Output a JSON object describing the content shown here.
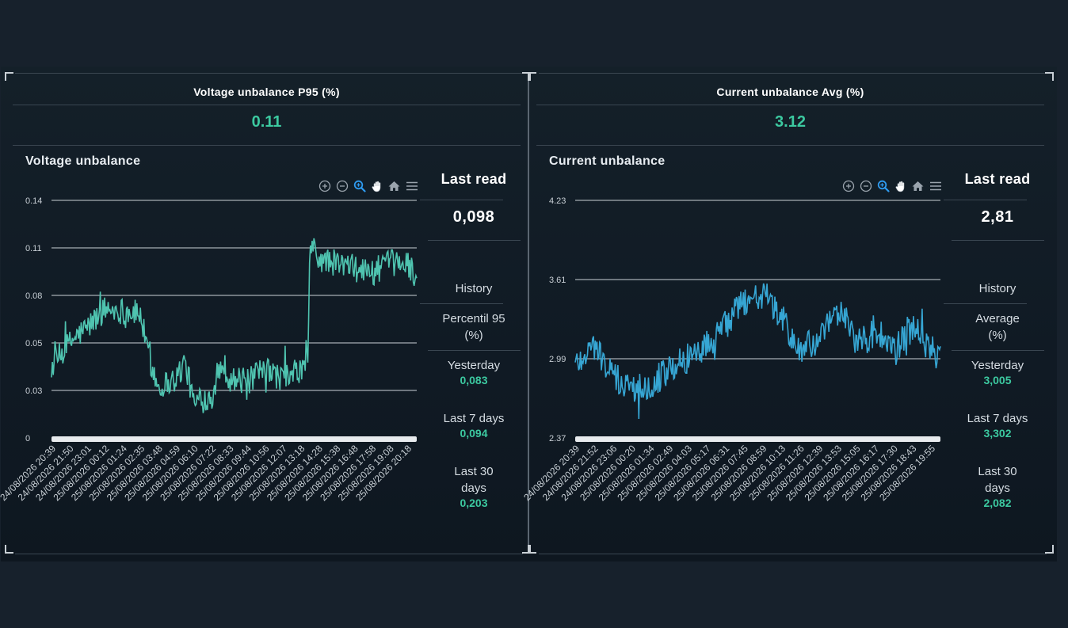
{
  "panels": [
    {
      "kpi_title": "Voltage unbalance P95 (%)",
      "kpi_value": "0.11",
      "chart_title": "Voltage unbalance",
      "side": {
        "last_read_label": "Last read",
        "last_read_value": "0,098",
        "history_label": "History",
        "metric_label": "Percentil 95 (%)",
        "yesterday_label": "Yesterday",
        "yesterday_value": "0,083",
        "last7_label": "Last 7 days",
        "last7_value": "0,094",
        "last30_label": "Last 30 days",
        "last30_value": "0,203"
      }
    },
    {
      "kpi_title": "Current unbalance Avg (%)",
      "kpi_value": "3.12",
      "chart_title": "Current unbalance",
      "side": {
        "last_read_label": "Last read",
        "last_read_value": "2,81",
        "history_label": "History",
        "metric_label": "Average (%)",
        "yesterday_label": "Yesterday",
        "yesterday_value": "3,005",
        "last7_label": "Last 7 days",
        "last7_value": "3,302",
        "last30_label": "Last 30 days",
        "last30_value": "2,082"
      }
    }
  ],
  "toolbar_icons": [
    "zoom-in-icon",
    "zoom-out-icon",
    "selection-zoom-icon",
    "pan-hand-icon",
    "reset-home-icon",
    "menu-icon"
  ],
  "colors": {
    "accent": "#3cc9a0",
    "voltage_series": "#4fc4b0",
    "current_series": "#36a6d4",
    "active_tool": "#2e9bf0"
  },
  "chart_data": [
    {
      "type": "line",
      "title": "Voltage unbalance",
      "yticks": [
        "0.14",
        "0.11",
        "0.08",
        "0.05",
        "0.03",
        "0"
      ],
      "ylim": [
        0,
        0.14
      ],
      "xticks": [
        "24/08/2026 20:39",
        "24/08/2026 21:50",
        "24/08/2026 23:01",
        "25/08/2026 00:12",
        "25/08/2026 01:24",
        "25/08/2026 02:35",
        "25/08/2026 03:48",
        "25/08/2026 04:59",
        "25/08/2026 06:10",
        "25/08/2026 07:22",
        "25/08/2026 08:33",
        "25/08/2026 09:44",
        "25/08/2026 10:56",
        "25/08/2026 12:07",
        "25/08/2026 13:18",
        "25/08/2026 14:28",
        "25/08/2026 15:38",
        "25/08/2026 16:48",
        "25/08/2026 17:58",
        "25/08/2026 19:08",
        "25/08/2026 20:18"
      ],
      "grid": true,
      "series": [
        {
          "color": "#4fc4b0",
          "knots": [
            [
              0,
              0.042
            ],
            [
              1.2,
              0.058
            ],
            [
              2,
              0.065
            ],
            [
              3,
              0.076
            ],
            [
              4,
              0.075
            ],
            [
              5,
              0.073
            ],
            [
              5.4,
              0.05
            ],
            [
              6,
              0.03
            ],
            [
              7,
              0.035
            ],
            [
              7.5,
              0.045
            ],
            [
              8,
              0.02
            ],
            [
              9,
              0.025
            ],
            [
              9.6,
              0.045
            ],
            [
              10,
              0.035
            ],
            [
              11,
              0.033
            ],
            [
              12,
              0.04
            ],
            [
              13,
              0.035
            ],
            [
              14,
              0.04
            ],
            [
              14.4,
              0.045
            ],
            [
              14.5,
              0.115
            ],
            [
              15,
              0.105
            ],
            [
              16,
              0.103
            ],
            [
              17,
              0.1
            ],
            [
              18,
              0.098
            ],
            [
              19,
              0.103
            ],
            [
              20,
              0.103
            ],
            [
              20.5,
              0.095
            ]
          ],
          "noise": 0.008,
          "points": 420
        }
      ]
    },
    {
      "type": "line",
      "title": "Current unbalance",
      "yticks": [
        "4.23",
        "3.61",
        "2.99",
        "2.37"
      ],
      "ylim": [
        2.37,
        4.23
      ],
      "xticks": [
        "24/08/2026 20:39",
        "24/08/2026 21:52",
        "24/08/2026 23:06",
        "25/08/2026 00:20",
        "25/08/2026 01:34",
        "25/08/2026 02:49",
        "25/08/2026 04:03",
        "25/08/2026 05:17",
        "25/08/2026 06:31",
        "25/08/2026 07:45",
        "25/08/2026 08:59",
        "25/08/2026 10:13",
        "25/08/2026 11:26",
        "25/08/2026 12:39",
        "25/08/2026 13:53",
        "25/08/2026 15:05",
        "25/08/2026 16:17",
        "25/08/2026 17:30",
        "25/08/2026 18:43",
        "25/08/2026 19:55"
      ],
      "grid": true,
      "series": [
        {
          "color": "#36a6d4",
          "knots": [
            [
              0,
              2.95
            ],
            [
              1,
              3.1
            ],
            [
              2,
              2.85
            ],
            [
              3,
              2.75
            ],
            [
              4,
              2.8
            ],
            [
              5,
              2.9
            ],
            [
              6,
              3.0
            ],
            [
              7,
              3.1
            ],
            [
              8,
              3.25
            ],
            [
              9,
              3.45
            ],
            [
              10,
              3.5
            ],
            [
              11,
              3.3
            ],
            [
              11.5,
              3.15
            ],
            [
              12,
              3.05
            ],
            [
              13,
              3.15
            ],
            [
              14,
              3.35
            ],
            [
              14.5,
              3.3
            ],
            [
              15,
              3.1
            ],
            [
              16,
              3.2
            ],
            [
              17,
              3.05
            ],
            [
              18,
              3.25
            ],
            [
              18.5,
              3.1
            ],
            [
              19,
              3.05
            ],
            [
              19.4,
              3.0
            ]
          ],
          "noise": 0.12,
          "points": 420
        }
      ]
    }
  ]
}
